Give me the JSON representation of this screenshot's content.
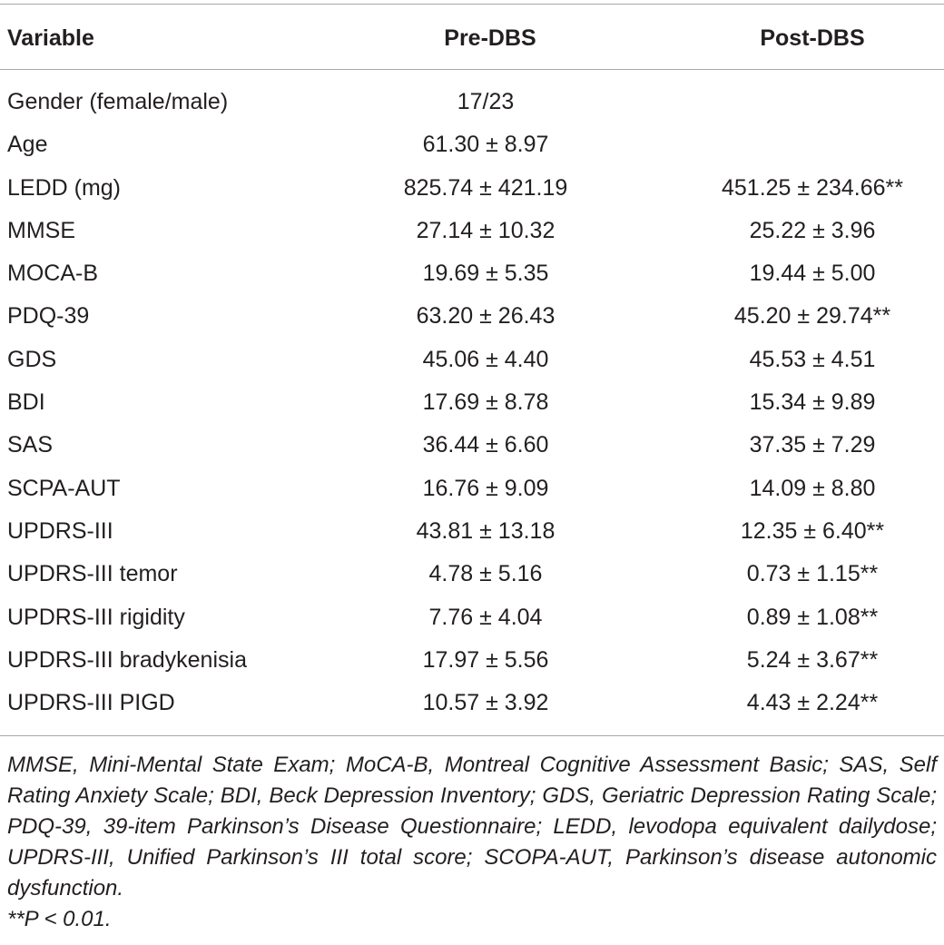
{
  "table": {
    "headers": {
      "variable": "Variable",
      "pre": "Pre-DBS",
      "post": "Post-DBS"
    },
    "rows": [
      {
        "variable": "Gender (female/male)",
        "pre": "17/23",
        "post": ""
      },
      {
        "variable": "Age",
        "pre": "61.30 ± 8.97",
        "post": ""
      },
      {
        "variable": "LEDD (mg)",
        "pre": "825.74 ± 421.19",
        "post": "451.25 ± 234.66**"
      },
      {
        "variable": "MMSE",
        "pre": "27.14 ± 10.32",
        "post": "25.22 ± 3.96"
      },
      {
        "variable": "MOCA-B",
        "pre": "19.69 ± 5.35",
        "post": "19.44 ± 5.00"
      },
      {
        "variable": "PDQ-39",
        "pre": "63.20 ± 26.43",
        "post": "45.20 ± 29.74**"
      },
      {
        "variable": "GDS",
        "pre": "45.06 ± 4.40",
        "post": "45.53 ± 4.51"
      },
      {
        "variable": "BDI",
        "pre": "17.69 ± 8.78",
        "post": "15.34 ± 9.89"
      },
      {
        "variable": "SAS",
        "pre": "36.44 ± 6.60",
        "post": "37.35 ± 7.29"
      },
      {
        "variable": "SCPA-AUT",
        "pre": "16.76 ± 9.09",
        "post": "14.09 ± 8.80"
      },
      {
        "variable": "UPDRS-III",
        "pre": "43.81 ± 13.18",
        "post": "12.35 ± 6.40**"
      },
      {
        "variable": "UPDRS-III temor",
        "pre": "4.78 ± 5.16",
        "post": "0.73 ± 1.15**"
      },
      {
        "variable": "UPDRS-III rigidity",
        "pre": "7.76 ± 4.04",
        "post": "0.89 ± 1.08**"
      },
      {
        "variable": "UPDRS-III bradykenisia",
        "pre": "17.97 ± 5.56",
        "post": "5.24 ± 3.67**"
      },
      {
        "variable": "UPDRS-III PIGD",
        "pre": "10.57 ± 3.92",
        "post": "4.43 ± 2.24**"
      }
    ]
  },
  "footnote": {
    "abbreviations": "MMSE, Mini-Mental State Exam; MoCA-B, Montreal Cognitive Assessment Basic; SAS, Self Rating Anxiety Scale; BDI, Beck Depression Inventory; GDS, Geriatric Depression Rating Scale; PDQ-39, 39-item Parkinson’s Disease Questionnaire; LEDD, levodopa equivalent dailydose; UPDRS-III, Unified Parkinson’s III total score; SCOPA-AUT, Parkinson’s disease autonomic dysfunction.",
    "significance": "**P < 0.01."
  },
  "colors": {
    "text": "#231f20",
    "rule": "#a7a9ac"
  }
}
